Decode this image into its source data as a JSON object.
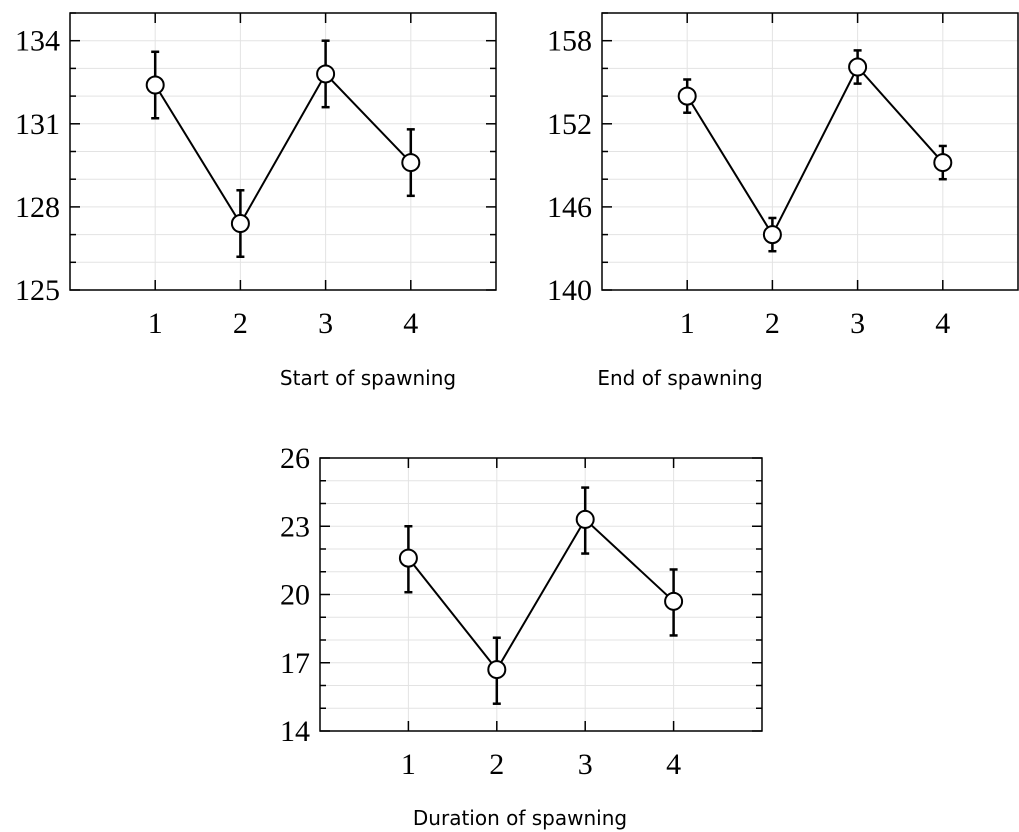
{
  "chart_data": [
    {
      "type": "line",
      "caption": "Start of spawning",
      "categories": [
        "1",
        "2",
        "3",
        "4"
      ],
      "series": [
        {
          "values": [
            132.4,
            127.4,
            132.8,
            129.6
          ],
          "error_low": [
            131.2,
            126.2,
            131.6,
            128.4
          ],
          "error_high": [
            133.6,
            128.6,
            134.0,
            130.8
          ]
        }
      ],
      "ylim": [
        125,
        135
      ],
      "yticks": [
        125,
        128,
        131,
        134
      ],
      "minor_tick_step": 1,
      "grid": true,
      "marker": "open-circle"
    },
    {
      "type": "line",
      "caption": "End of spawning",
      "categories": [
        "1",
        "2",
        "3",
        "4"
      ],
      "series": [
        {
          "values": [
            154.0,
            144.0,
            156.1,
            149.2
          ],
          "error_low": [
            152.8,
            142.8,
            154.9,
            148.0
          ],
          "error_high": [
            155.2,
            145.2,
            157.3,
            150.4
          ]
        }
      ],
      "ylim": [
        140,
        160
      ],
      "yticks": [
        140,
        146,
        152,
        158
      ],
      "minor_tick_step": 2,
      "grid": true,
      "marker": "open-circle"
    },
    {
      "type": "line",
      "caption": "Duration of spawning",
      "categories": [
        "1",
        "2",
        "3",
        "4"
      ],
      "series": [
        {
          "values": [
            21.6,
            16.7,
            23.3,
            19.7
          ],
          "error_low": [
            20.1,
            15.2,
            21.8,
            18.2
          ],
          "error_high": [
            23.0,
            18.1,
            24.7,
            21.1
          ]
        }
      ],
      "ylim": [
        14,
        26
      ],
      "yticks": [
        14,
        17,
        20,
        23,
        26
      ],
      "minor_tick_step": 1,
      "grid": true,
      "marker": "open-circle"
    }
  ]
}
